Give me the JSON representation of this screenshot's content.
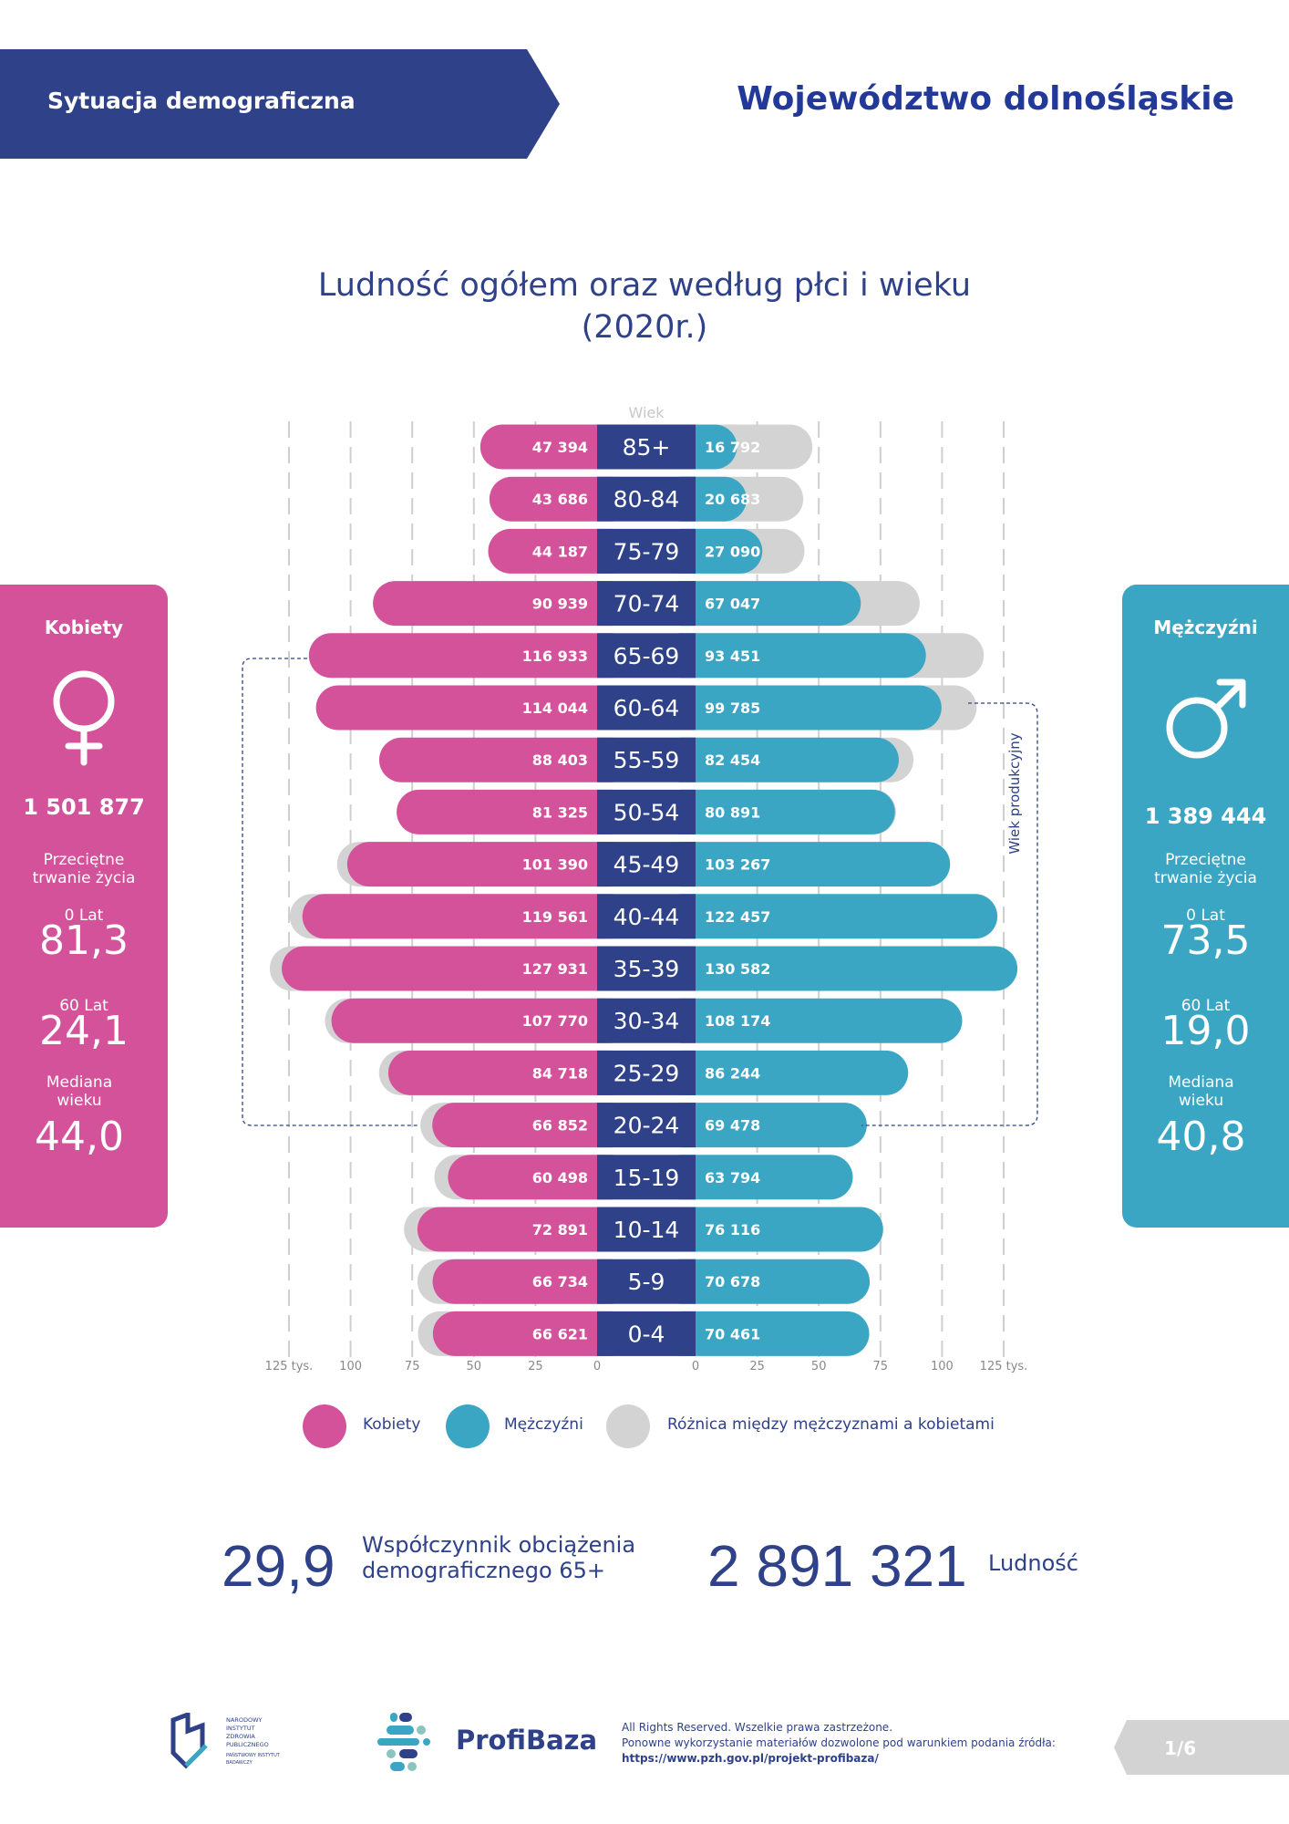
{
  "header": {
    "section": "Sytuacja demograficzna",
    "region": "Województwo dolnośląskie"
  },
  "chart_title_line1": "Ludność ogółem oraz według płci i wieku",
  "chart_title_line2": "(2020r.)",
  "colors": {
    "women": "#d4529a",
    "men": "#3ba6c3",
    "difference": "#d3d3d3",
    "center": "#2e4189",
    "brand": "#2e4189"
  },
  "chart_data": {
    "type": "bar",
    "subtype": "population-pyramid",
    "center_label": "Wiek",
    "categories": [
      "85+",
      "80-84",
      "75-79",
      "70-74",
      "65-69",
      "60-64",
      "55-59",
      "50-54",
      "45-49",
      "40-44",
      "35-39",
      "30-34",
      "25-29",
      "20-24",
      "15-19",
      "10-14",
      "5-9",
      "0-4"
    ],
    "series": [
      {
        "name": "Kobiety",
        "values": [
          47394,
          43686,
          44187,
          90939,
          116933,
          114044,
          88403,
          81325,
          101390,
          119561,
          127931,
          107770,
          84718,
          66852,
          60498,
          72891,
          66734,
          66621
        ],
        "labels": [
          "47 394",
          "43 686",
          "44 187",
          "90 939",
          "116 933",
          "114 044",
          "88 403",
          "81 325",
          "101 390",
          "119 561",
          "127 931",
          "107 770",
          "84 718",
          "66 852",
          "60 498",
          "72 891",
          "66 734",
          "66 621"
        ]
      },
      {
        "name": "Mężczyźni",
        "values": [
          16792,
          20683,
          27090,
          67047,
          93451,
          99785,
          82454,
          80891,
          103267,
          122457,
          130582,
          108174,
          86244,
          69478,
          63794,
          76116,
          70678,
          70461
        ],
        "labels": [
          "16 792",
          "20 683",
          "27 090",
          "67 047",
          "93 451",
          "99 785",
          "82 454",
          "80 891",
          "103 267",
          "122 457",
          "130 582",
          "108 174",
          "86 244",
          "69 478",
          "63 794",
          "76 116",
          "70 678",
          "70 461"
        ]
      }
    ],
    "xlim": [
      0,
      125000
    ],
    "x_ticks_left": [
      "125 tys.",
      "100",
      "75",
      "50",
      "25",
      "0"
    ],
    "x_ticks_right": [
      "0",
      "25",
      "50",
      "75",
      "100",
      "125 tys."
    ],
    "grid": true,
    "bracket_label": "Wiek produkcyjny",
    "legend": {
      "placement": "bottom",
      "items": [
        "Kobiety",
        "Mężczyźni",
        "Różnica między mężczyznami a kobietami"
      ]
    }
  },
  "women_panel": {
    "title": "Kobiety",
    "icon": "female-symbol-icon",
    "total": "1 501 877",
    "life_label": "Przeciętne trwanie życia",
    "age0_label": "0 Lat",
    "age0_value": "81,3",
    "age60_label": "60 Lat",
    "age60_value": "24,1",
    "median_label": "Mediana wieku",
    "median_value": "44,0"
  },
  "men_panel": {
    "title": "Mężczyźni",
    "icon": "male-symbol-icon",
    "total": "1 389 444",
    "life_label": "Przeciętne trwanie życia",
    "age0_label": "0 Lat",
    "age0_value": "73,5",
    "age60_label": "60 Lat",
    "age60_value": "19,0",
    "median_label": "Mediana wieku",
    "median_value": "40,8"
  },
  "stats": {
    "dependency_value": "29,9",
    "dependency_label_1": "Współczynnik obciążenia",
    "dependency_label_2": "demograficznego 65+",
    "population_value": "2 891 321",
    "population_label": "Ludność"
  },
  "footer": {
    "nizp_logo_text": "NARODOWY INSTYTUT ZDROWIA PUBLICZNEGO PAŃSTWOWY INSTYTUT BADAWCZY",
    "profibaza_logo": "ProfiBaza",
    "rights": "All Rights Reserved. Wszelkie prawa zastrzeżone.",
    "reuse": "Ponowne wykorzystanie materiałów dozwolone pod warunkiem podania źródła:",
    "url": "https://www.pzh.gov.pl/projekt-profibaza/",
    "page": "1/6"
  }
}
